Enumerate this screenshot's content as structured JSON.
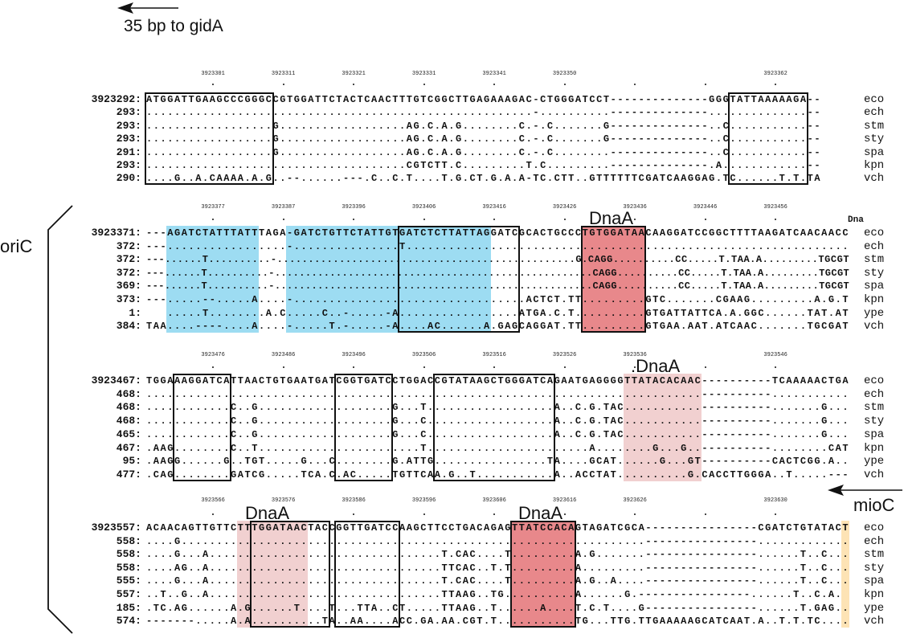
{
  "annotations": {
    "gidA_note": "35 bp to gidA",
    "oriC": "oriC",
    "mioC": "mioC",
    "dnaA_small": "Dna",
    "dnaA_box_2": "DnaA",
    "dnaA_box_3": ".DnaA",
    "dnaA_box_4a": "DnaA",
    "dnaA_box_4b": "DnaA"
  },
  "colors": {
    "blue_highlight": "#9ddcf2",
    "red_highlight": "#e8888b",
    "pink_highlight": "#f1d0d0",
    "yellow_highlight": "#fde3b5"
  },
  "blocks": [
    {
      "ticks": [
        "3923301",
        "3923311",
        "3923321",
        "3923331",
        "3923341",
        "3923350",
        "",
        "",
        "3923362"
      ],
      "rows": [
        {
          "num": "3923292:",
          "seq": "ATGGATTGAAGCCCGGGCCGTGGATTCTACTCAACTTTGTCGGCTTGAGAAAGAC-CTGGGATCCT--------------GGGTATTAAAAAGA--",
          "sp": "eco"
        },
        {
          "num": "293:",
          "seq": ".......................................................-..........--------------..............--",
          "sp": "ech"
        },
        {
          "num": "293:",
          "seq": "..................G..................AG.C.A.G........C.-.C.......G--------------..C...........--",
          "sp": "stm"
        },
        {
          "num": "293:",
          "seq": "..................G..................AG.C.A.G........C.-.C.......G--------------..C...........--",
          "sp": "sty"
        },
        {
          "num": "291:",
          "seq": "..................G..................AG.C.A.G........C.-.C........--------------..C...........--",
          "sp": "spa"
        },
        {
          "num": "293:",
          "seq": ".....................................CGTCTT.C.........T.C.........--------------.A............--",
          "sp": "kpn"
        },
        {
          "num": "290:",
          "seq": "....G..A.CAAAA.A.G..--......---.C..C.T....T.G.CT.G.A.A-TC.CTT..GTTTTTTCGATCAAGGAG.TC......T.T.TA",
          "sp": "vch"
        }
      ]
    },
    {
      "ticks": [
        "3923377",
        "3923387",
        "3923396",
        "3923406",
        "3923416",
        "3923426",
        "3923436",
        "3923446",
        "3923456"
      ],
      "rows": [
        {
          "num": "3923371:",
          "seq": "---AGATCTATTTATTTAGA-GATCTGTTCTATTGTGATCTCTTATTAGGATCGCACTGCCCTGTGGATAACAAGGATCCGGCTTTTAAGATCAACAACC",
          "sp": "eco"
        },
        {
          "num": "372:",
          "seq": "---.................-...............T...............................................................",
          "sp": "ech"
        },
        {
          "num": "372:",
          "seq": "---......T..........-................................................G.CAGG..........CC.....T.TAA.A.........TGCGT",
          "sp": "stm"
        },
        {
          "num": "372:",
          "seq": "---......T..........-....................................................CAGG..........CC.....T.TAA.A.........TGCGT",
          "sp": "sty"
        },
        {
          "num": "369:",
          "seq": "---......T..........-....................................................CAGG..........CC.....T.TAA.A.........TGCGT",
          "sp": "spa"
        },
        {
          "num": "373:",
          "seq": "---.....--.....A....-.................................ACTCT.TT.........GTC.......CGAAG.........A.G.T",
          "sp": "kpn"
        },
        {
          "num": "1:",
          "seq": "   .....T........A.C.....C..-.....-A.................ATGA.C.T..........GTGATTATTCA.A.GGC......TAT.AT",
          "sp": "ype"
        },
        {
          "num": "384:",
          "seq": "TAA....----....A....-.....T.-.....-A....AC......A.GAGCAGGAT.TT.........GTGAA.AAT.ATCAAC.......TGCGAT",
          "sp": "vch"
        }
      ]
    },
    {
      "ticks": [
        "3923476",
        "3923486",
        "3923496",
        "3923506",
        "3923516",
        "3923526",
        "3923536",
        "",
        "3923546"
      ],
      "rows": [
        {
          "num": "3923467:",
          "seq": "TGGAAAGGATCATTAACTGTGAATGATCGGTGATCCTGGACCGTATAAGCTGGGATCAGAATGAGGGGTTATACACAAC----------TCAAAAACTGA",
          "sp": "eco"
        },
        {
          "num": "468:",
          "seq": "...............................................................................----------...........",
          "sp": "ech"
        },
        {
          "num": "468:",
          "seq": "............C..G...................G...T..................A..C.G.TAC...........----------.......G...",
          "sp": "stm"
        },
        {
          "num": "468:",
          "seq": "............C..G...................G...C..................A..C.G.TAC...........----------.......G...",
          "sp": "sty"
        },
        {
          "num": "465:",
          "seq": "............C..G...................G...C..................A..C.G.TAC...........----------.......G...",
          "sp": "spa"
        },
        {
          "num": "467:",
          "seq": ".AAG........C..T.......................T.......................A........G...G..----------........CAT",
          "sp": "kpn"
        },
        {
          "num": "95:",
          "seq": ".AAGG......G..TGT.....G...C........G.ATTG................TA....GCAT......G...GT----------CACTCGG.A..",
          "sp": "ype"
        },
        {
          "num": "477:",
          "seq": ".CAG........GATCG.....TCA.C.AC.....TGTTCAA.G..T...........A..ACCTAT..........G.CACCTTGGGA..T.....---",
          "sp": "vch"
        }
      ]
    },
    {
      "ticks": [
        "3923566",
        "3923576",
        "3923586",
        "3923596",
        "3923606",
        "3923616",
        "3923626",
        "",
        "3923630"
      ],
      "rows": [
        {
          "num": "3923557:",
          "seq": "ACAACAGTTGTTCTTTGGATAACTACCGGTTGATCCAAGCTTCCTGACAGAGTTATCCACAGTAGATCGCA----------------CGATCTGTATACT",
          "sp": "eco"
        },
        {
          "num": "558:",
          "seq": "....G..................................................................----------------.............",
          "sp": "ech"
        },
        {
          "num": "558:",
          "seq": "....G...A.................................T.CAC....T.........A.G.......----------------......T..C...",
          "sp": "stm"
        },
        {
          "num": "558:",
          "seq": "....AG..A.................................TTCAC..T.T.........A.........----------------......T..C...",
          "sp": "sty"
        },
        {
          "num": "555:",
          "seq": "....G...A.................................T.CAC....T.........A.G..A....----------------......T..C...",
          "sp": "spa"
        },
        {
          "num": "557:",
          "seq": "..T..G..A.................................TTAAG..TG..........A......G.----------------......T..C.A.",
          "sp": "kpn"
        },
        {
          "num": "185:",
          "seq": ".TC.AG......A.G......T....T...TTA..CT.....TTAAG..T......A....T.C.T....G----------------......T.GAG..",
          "sp": "ype"
        },
        {
          "num": "574:",
          "seq": "-------.....A.A..........TA..AA....ACC.GA.AA.CGT.T...........TG...TTG.TTGAAAAAGCATCAAT.A..T.T.TC....",
          "sp": "vch"
        }
      ]
    }
  ]
}
